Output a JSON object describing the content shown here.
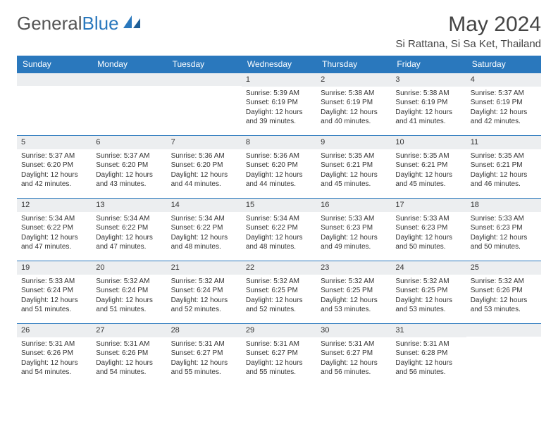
{
  "logo": {
    "text1": "General",
    "text2": "Blue"
  },
  "title": "May 2024",
  "location": "Si Rattana, Si Sa Ket, Thailand",
  "colors": {
    "header_bg": "#2a78bd",
    "daynum_bg": "#eceef0",
    "border": "#2a78bd",
    "text": "#333333"
  },
  "dow": [
    "Sunday",
    "Monday",
    "Tuesday",
    "Wednesday",
    "Thursday",
    "Friday",
    "Saturday"
  ],
  "weeks": [
    [
      {
        "day": "",
        "sunrise": "",
        "sunset": "",
        "daylight": ""
      },
      {
        "day": "",
        "sunrise": "",
        "sunset": "",
        "daylight": ""
      },
      {
        "day": "",
        "sunrise": "",
        "sunset": "",
        "daylight": ""
      },
      {
        "day": "1",
        "sunrise": "Sunrise: 5:39 AM",
        "sunset": "Sunset: 6:19 PM",
        "daylight": "Daylight: 12 hours and 39 minutes."
      },
      {
        "day": "2",
        "sunrise": "Sunrise: 5:38 AM",
        "sunset": "Sunset: 6:19 PM",
        "daylight": "Daylight: 12 hours and 40 minutes."
      },
      {
        "day": "3",
        "sunrise": "Sunrise: 5:38 AM",
        "sunset": "Sunset: 6:19 PM",
        "daylight": "Daylight: 12 hours and 41 minutes."
      },
      {
        "day": "4",
        "sunrise": "Sunrise: 5:37 AM",
        "sunset": "Sunset: 6:19 PM",
        "daylight": "Daylight: 12 hours and 42 minutes."
      }
    ],
    [
      {
        "day": "5",
        "sunrise": "Sunrise: 5:37 AM",
        "sunset": "Sunset: 6:20 PM",
        "daylight": "Daylight: 12 hours and 42 minutes."
      },
      {
        "day": "6",
        "sunrise": "Sunrise: 5:37 AM",
        "sunset": "Sunset: 6:20 PM",
        "daylight": "Daylight: 12 hours and 43 minutes."
      },
      {
        "day": "7",
        "sunrise": "Sunrise: 5:36 AM",
        "sunset": "Sunset: 6:20 PM",
        "daylight": "Daylight: 12 hours and 44 minutes."
      },
      {
        "day": "8",
        "sunrise": "Sunrise: 5:36 AM",
        "sunset": "Sunset: 6:20 PM",
        "daylight": "Daylight: 12 hours and 44 minutes."
      },
      {
        "day": "9",
        "sunrise": "Sunrise: 5:35 AM",
        "sunset": "Sunset: 6:21 PM",
        "daylight": "Daylight: 12 hours and 45 minutes."
      },
      {
        "day": "10",
        "sunrise": "Sunrise: 5:35 AM",
        "sunset": "Sunset: 6:21 PM",
        "daylight": "Daylight: 12 hours and 45 minutes."
      },
      {
        "day": "11",
        "sunrise": "Sunrise: 5:35 AM",
        "sunset": "Sunset: 6:21 PM",
        "daylight": "Daylight: 12 hours and 46 minutes."
      }
    ],
    [
      {
        "day": "12",
        "sunrise": "Sunrise: 5:34 AM",
        "sunset": "Sunset: 6:22 PM",
        "daylight": "Daylight: 12 hours and 47 minutes."
      },
      {
        "day": "13",
        "sunrise": "Sunrise: 5:34 AM",
        "sunset": "Sunset: 6:22 PM",
        "daylight": "Daylight: 12 hours and 47 minutes."
      },
      {
        "day": "14",
        "sunrise": "Sunrise: 5:34 AM",
        "sunset": "Sunset: 6:22 PM",
        "daylight": "Daylight: 12 hours and 48 minutes."
      },
      {
        "day": "15",
        "sunrise": "Sunrise: 5:34 AM",
        "sunset": "Sunset: 6:22 PM",
        "daylight": "Daylight: 12 hours and 48 minutes."
      },
      {
        "day": "16",
        "sunrise": "Sunrise: 5:33 AM",
        "sunset": "Sunset: 6:23 PM",
        "daylight": "Daylight: 12 hours and 49 minutes."
      },
      {
        "day": "17",
        "sunrise": "Sunrise: 5:33 AM",
        "sunset": "Sunset: 6:23 PM",
        "daylight": "Daylight: 12 hours and 50 minutes."
      },
      {
        "day": "18",
        "sunrise": "Sunrise: 5:33 AM",
        "sunset": "Sunset: 6:23 PM",
        "daylight": "Daylight: 12 hours and 50 minutes."
      }
    ],
    [
      {
        "day": "19",
        "sunrise": "Sunrise: 5:33 AM",
        "sunset": "Sunset: 6:24 PM",
        "daylight": "Daylight: 12 hours and 51 minutes."
      },
      {
        "day": "20",
        "sunrise": "Sunrise: 5:32 AM",
        "sunset": "Sunset: 6:24 PM",
        "daylight": "Daylight: 12 hours and 51 minutes."
      },
      {
        "day": "21",
        "sunrise": "Sunrise: 5:32 AM",
        "sunset": "Sunset: 6:24 PM",
        "daylight": "Daylight: 12 hours and 52 minutes."
      },
      {
        "day": "22",
        "sunrise": "Sunrise: 5:32 AM",
        "sunset": "Sunset: 6:25 PM",
        "daylight": "Daylight: 12 hours and 52 minutes."
      },
      {
        "day": "23",
        "sunrise": "Sunrise: 5:32 AM",
        "sunset": "Sunset: 6:25 PM",
        "daylight": "Daylight: 12 hours and 53 minutes."
      },
      {
        "day": "24",
        "sunrise": "Sunrise: 5:32 AM",
        "sunset": "Sunset: 6:25 PM",
        "daylight": "Daylight: 12 hours and 53 minutes."
      },
      {
        "day": "25",
        "sunrise": "Sunrise: 5:32 AM",
        "sunset": "Sunset: 6:26 PM",
        "daylight": "Daylight: 12 hours and 53 minutes."
      }
    ],
    [
      {
        "day": "26",
        "sunrise": "Sunrise: 5:31 AM",
        "sunset": "Sunset: 6:26 PM",
        "daylight": "Daylight: 12 hours and 54 minutes."
      },
      {
        "day": "27",
        "sunrise": "Sunrise: 5:31 AM",
        "sunset": "Sunset: 6:26 PM",
        "daylight": "Daylight: 12 hours and 54 minutes."
      },
      {
        "day": "28",
        "sunrise": "Sunrise: 5:31 AM",
        "sunset": "Sunset: 6:27 PM",
        "daylight": "Daylight: 12 hours and 55 minutes."
      },
      {
        "day": "29",
        "sunrise": "Sunrise: 5:31 AM",
        "sunset": "Sunset: 6:27 PM",
        "daylight": "Daylight: 12 hours and 55 minutes."
      },
      {
        "day": "30",
        "sunrise": "Sunrise: 5:31 AM",
        "sunset": "Sunset: 6:27 PM",
        "daylight": "Daylight: 12 hours and 56 minutes."
      },
      {
        "day": "31",
        "sunrise": "Sunrise: 5:31 AM",
        "sunset": "Sunset: 6:28 PM",
        "daylight": "Daylight: 12 hours and 56 minutes."
      },
      {
        "day": "",
        "sunrise": "",
        "sunset": "",
        "daylight": ""
      }
    ]
  ]
}
